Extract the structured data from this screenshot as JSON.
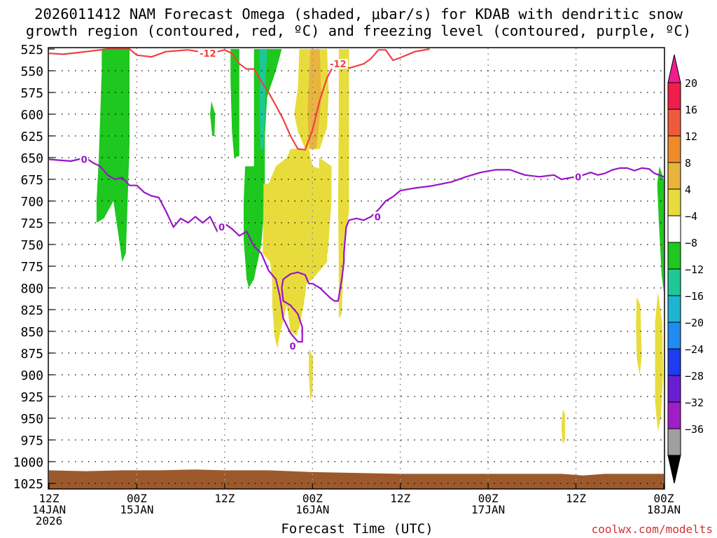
{
  "title_line1": "2026011412 NAM Forecast Omega (shaded, μbar/s) for KDAB with dendritic snow",
  "title_line2": "growth region (contoured, red, ºC) and freezing level (contoured, purple, ºC)",
  "credit": "coolwx.com/modelts",
  "chart_data": {
    "type": "heatmap",
    "xlabel": "Forecast Time (UTC)",
    "x_ticks": [
      {
        "hour": 0,
        "line1": "12Z",
        "line2": "14JAN",
        "line3": "2026"
      },
      {
        "hour": 12,
        "line1": "00Z",
        "line2": "15JAN"
      },
      {
        "hour": 24,
        "line1": "12Z"
      },
      {
        "hour": 36,
        "line1": "00Z",
        "line2": "16JAN"
      },
      {
        "hour": 48,
        "line1": "12Z"
      },
      {
        "hour": 60,
        "line1": "00Z",
        "line2": "17JAN"
      },
      {
        "hour": 72,
        "line1": "12Z"
      },
      {
        "hour": 84,
        "line1": "00Z",
        "line2": "18JAN"
      }
    ],
    "y_ticks": [
      "525",
      "550",
      "575",
      "600",
      "625",
      "650",
      "675",
      "700",
      "725",
      "750",
      "775",
      "800",
      "825",
      "850",
      "875",
      "900",
      "925",
      "950",
      "975",
      "1000",
      "1025"
    ],
    "ylim": [
      525,
      1030
    ],
    "xlim": [
      0,
      84
    ],
    "colorbar": {
      "levels": [
        "20",
        "16",
        "12",
        "8",
        "4",
        "−4",
        "−8",
        "−12",
        "−16",
        "−20",
        "−24",
        "−28",
        "−32",
        "−36"
      ],
      "colors": [
        "#f01e4a",
        "#f05a3c",
        "#f08a2a",
        "#e8b43c",
        "#e8dc3c",
        "#ffffff",
        "#1ec81e",
        "#1ec896",
        "#1eb4d2",
        "#1e8cf0",
        "#1e3cf0",
        "#6a1ed2",
        "#a01ec8",
        "#a0a0a0"
      ],
      "top_arrow": "#f01e8c",
      "bottom_arrow": "#000000"
    },
    "contour_labels": {
      "dgz": "-12",
      "freezing": "0"
    },
    "dgz_contour": [
      [
        0,
        530
      ],
      [
        2,
        531
      ],
      [
        4,
        529
      ],
      [
        6,
        527
      ],
      [
        8,
        525
      ],
      [
        11,
        525
      ],
      [
        12,
        532
      ],
      [
        14,
        534
      ],
      [
        16,
        528
      ],
      [
        19,
        526
      ],
      [
        22,
        530
      ],
      [
        24,
        526
      ],
      [
        25,
        530
      ],
      [
        26,
        542
      ],
      [
        27,
        548
      ],
      [
        28,
        548
      ],
      [
        29,
        562
      ],
      [
        30,
        575
      ],
      [
        31,
        590
      ],
      [
        32,
        606
      ],
      [
        33,
        625
      ],
      [
        34,
        640
      ],
      [
        35,
        641
      ],
      [
        36,
        618
      ],
      [
        37,
        584
      ],
      [
        38,
        558
      ],
      [
        39,
        542
      ],
      [
        41,
        547
      ],
      [
        43,
        542
      ],
      [
        44,
        536
      ],
      [
        45,
        526
      ],
      [
        46,
        526
      ],
      [
        47,
        538
      ],
      [
        48,
        535
      ],
      [
        50,
        528
      ],
      [
        52,
        525
      ]
    ],
    "freezing_contour": [
      [
        0,
        652
      ],
      [
        3,
        654
      ],
      [
        5,
        650
      ],
      [
        6,
        656
      ],
      [
        7,
        660
      ],
      [
        8,
        670
      ],
      [
        9,
        675
      ],
      [
        10,
        673
      ],
      [
        11,
        682
      ],
      [
        12,
        682
      ],
      [
        13,
        690
      ],
      [
        14,
        694
      ],
      [
        15,
        696
      ],
      [
        16,
        712
      ],
      [
        17,
        730
      ],
      [
        18,
        720
      ],
      [
        19,
        725
      ],
      [
        20,
        718
      ],
      [
        21,
        725
      ],
      [
        22,
        718
      ],
      [
        23,
        735
      ],
      [
        24,
        726
      ],
      [
        25,
        732
      ],
      [
        26,
        740
      ],
      [
        27,
        735
      ],
      [
        28,
        752
      ],
      [
        29,
        760
      ],
      [
        30,
        780
      ],
      [
        31,
        790
      ],
      [
        31.5,
        808
      ],
      [
        32,
        835
      ],
      [
        33,
        852
      ],
      [
        34,
        862
      ],
      [
        34.6,
        862
      ],
      [
        34.6,
        845
      ],
      [
        34,
        830
      ],
      [
        33,
        820
      ],
      [
        32,
        815
      ],
      [
        31.8,
        800
      ],
      [
        32,
        790
      ],
      [
        33,
        784
      ],
      [
        34,
        782
      ],
      [
        35,
        785
      ],
      [
        35.5,
        795
      ],
      [
        36,
        795
      ],
      [
        37,
        800
      ],
      [
        38,
        808
      ],
      [
        38.5,
        812
      ],
      [
        39,
        815
      ],
      [
        39.5,
        815
      ],
      [
        40,
        790
      ],
      [
        40.3,
        770
      ],
      [
        40.3,
        760
      ],
      [
        40.6,
        730
      ],
      [
        41,
        722
      ],
      [
        42,
        720
      ],
      [
        43,
        722
      ],
      [
        44,
        718
      ],
      [
        45,
        710
      ],
      [
        46,
        700
      ],
      [
        47,
        695
      ],
      [
        48,
        688
      ],
      [
        50,
        685
      ],
      [
        52,
        683
      ],
      [
        55,
        678
      ],
      [
        57,
        672
      ],
      [
        59,
        667
      ],
      [
        61,
        664
      ],
      [
        63,
        664
      ],
      [
        65,
        670
      ],
      [
        67,
        672
      ],
      [
        69,
        670
      ],
      [
        70,
        675
      ],
      [
        72,
        672
      ],
      [
        73,
        670
      ],
      [
        74,
        667
      ],
      [
        75,
        670
      ],
      [
        76,
        668
      ],
      [
        77,
        664
      ],
      [
        78,
        662
      ],
      [
        79,
        662
      ],
      [
        80,
        665
      ],
      [
        81,
        662
      ],
      [
        82,
        663
      ],
      [
        82.7,
        668
      ],
      [
        84,
        672
      ]
    ],
    "omega_regions": [
      {
        "value": -8,
        "color": "#1ec81e",
        "poly": [
          [
            7.2,
            525
          ],
          [
            11,
            525
          ],
          [
            11,
            635
          ],
          [
            10.5,
            760
          ],
          [
            10,
            770
          ],
          [
            9.5,
            740
          ],
          [
            8.8,
            700
          ],
          [
            7.5,
            720
          ],
          [
            6.5,
            725
          ],
          [
            6.5,
            700
          ],
          [
            6.8,
            650
          ],
          [
            7,
            600
          ],
          [
            7.2,
            550
          ]
        ]
      },
      {
        "value": -8,
        "color": "#1ec81e",
        "poly": [
          [
            22.2,
            585
          ],
          [
            22.7,
            600
          ],
          [
            22.6,
            625
          ],
          [
            22.3,
            625
          ],
          [
            22,
            600
          ]
        ]
      },
      {
        "value": -8,
        "color": "#1ec81e",
        "poly": [
          [
            24.8,
            525
          ],
          [
            26,
            525
          ],
          [
            26,
            648
          ],
          [
            25.3,
            650
          ],
          [
            25,
            620
          ],
          [
            24.8,
            560
          ]
        ]
      },
      {
        "value": -8,
        "color": "#1ec81e",
        "poly": [
          [
            28,
            525
          ],
          [
            31.8,
            525
          ],
          [
            31,
            550
          ],
          [
            29.8,
            580
          ],
          [
            29.5,
            625
          ],
          [
            29.5,
            700
          ],
          [
            29,
            750
          ],
          [
            28,
            790
          ],
          [
            27.3,
            800
          ],
          [
            27,
            790
          ],
          [
            26.6,
            745
          ],
          [
            26.6,
            700
          ],
          [
            26.8,
            660
          ],
          [
            28,
            660
          ]
        ]
      },
      {
        "value": -12,
        "color": "#1ec896",
        "poly": [
          [
            28.8,
            525
          ],
          [
            29.8,
            525
          ],
          [
            29.6,
            560
          ],
          [
            29.5,
            600
          ],
          [
            29.3,
            640
          ],
          [
            28.9,
            640
          ],
          [
            28.8,
            600
          ]
        ]
      },
      {
        "value": -8,
        "color": "#1ec81e",
        "poly": [
          [
            83.4,
            660
          ],
          [
            84,
            675
          ],
          [
            84,
            805
          ],
          [
            83.7,
            785
          ],
          [
            83.3,
            720
          ],
          [
            83.1,
            680
          ]
        ]
      },
      {
        "value": 4,
        "color": "#e8dc3c",
        "poly": [
          [
            34.2,
            525
          ],
          [
            38,
            525
          ],
          [
            38.2,
            575
          ],
          [
            38,
            615
          ],
          [
            37,
            640
          ],
          [
            35,
            640
          ],
          [
            34,
            620
          ],
          [
            33.5,
            600
          ],
          [
            34,
            570
          ]
        ]
      },
      {
        "value": 4,
        "color": "#e8dc3c",
        "poly": [
          [
            33,
            640
          ],
          [
            35.5,
            640
          ],
          [
            36,
            660
          ],
          [
            38,
            665
          ],
          [
            38.5,
            670
          ],
          [
            38.5,
            700
          ],
          [
            38,
            740
          ],
          [
            38,
            770
          ],
          [
            37,
            780
          ],
          [
            36,
            790
          ],
          [
            35.2,
            795
          ],
          [
            34.8,
            820
          ],
          [
            34.2,
            845
          ],
          [
            33.8,
            855
          ],
          [
            33,
            850
          ],
          [
            32.5,
            820
          ],
          [
            31.5,
            855
          ],
          [
            31.2,
            870
          ],
          [
            30.8,
            855
          ],
          [
            30.5,
            820
          ],
          [
            30.5,
            790
          ],
          [
            30.2,
            770
          ],
          [
            29.2,
            760
          ],
          [
            29.3,
            700
          ],
          [
            29.3,
            680
          ],
          [
            30,
            680
          ],
          [
            31,
            660
          ],
          [
            32.5,
            650
          ]
        ]
      },
      {
        "value": 4,
        "color": "#e8dc3c",
        "poly": [
          [
            39.6,
            525
          ],
          [
            41,
            525
          ],
          [
            41,
            650
          ],
          [
            41,
            710
          ],
          [
            40.3,
            760
          ],
          [
            40,
            830
          ],
          [
            39.6,
            835
          ],
          [
            39.6,
            790
          ],
          [
            39.5,
            700
          ],
          [
            39.6,
            600
          ]
        ]
      },
      {
        "value": 4,
        "color": "#e8dc3c",
        "poly": [
          [
            36.9,
            650
          ],
          [
            38.6,
            660
          ],
          [
            38.6,
            700
          ],
          [
            38.1,
            760
          ],
          [
            37,
            760
          ],
          [
            36.9,
            700
          ]
        ]
      },
      {
        "value": 4,
        "color": "#e8dc3c",
        "poly": [
          [
            35.5,
            870
          ],
          [
            36.1,
            880
          ],
          [
            36,
            920
          ],
          [
            35.7,
            930
          ],
          [
            35.5,
            900
          ]
        ]
      },
      {
        "value": 4,
        "color": "#e8dc3c",
        "poly": [
          [
            80.3,
            810
          ],
          [
            80.8,
            820
          ],
          [
            81,
            880
          ],
          [
            80.7,
            900
          ],
          [
            80.3,
            880
          ],
          [
            80.2,
            840
          ]
        ]
      },
      {
        "value": 4,
        "color": "#e8dc3c",
        "poly": [
          [
            83.2,
            805
          ],
          [
            83.8,
            840
          ],
          [
            83.9,
            900
          ],
          [
            83.6,
            950
          ],
          [
            83.2,
            965
          ],
          [
            82.8,
            930
          ],
          [
            82.8,
            840
          ]
        ]
      },
      {
        "value": 4,
        "color": "#e8dc3c",
        "poly": [
          [
            70.2,
            940
          ],
          [
            70.5,
            945
          ],
          [
            70.5,
            975
          ],
          [
            70.2,
            980
          ],
          [
            70,
            960
          ]
        ]
      },
      {
        "value": 8,
        "color": "#e8b43c",
        "poly": [
          [
            35.7,
            525
          ],
          [
            37,
            525
          ],
          [
            37.2,
            580
          ],
          [
            36.8,
            620
          ],
          [
            36.5,
            640
          ],
          [
            35.6,
            640
          ],
          [
            35.3,
            600
          ],
          [
            35.5,
            560
          ]
        ]
      }
    ],
    "ground": {
      "color": "#9c5a2c",
      "profile": [
        [
          0,
          1010
        ],
        [
          5,
          1011
        ],
        [
          10,
          1010
        ],
        [
          15,
          1010
        ],
        [
          20,
          1009
        ],
        [
          24,
          1010
        ],
        [
          30,
          1010
        ],
        [
          36,
          1012
        ],
        [
          42,
          1013
        ],
        [
          48,
          1014
        ],
        [
          60,
          1014
        ],
        [
          70,
          1014
        ],
        [
          73,
          1016
        ],
        [
          76,
          1014
        ],
        [
          84,
          1014
        ]
      ]
    }
  }
}
